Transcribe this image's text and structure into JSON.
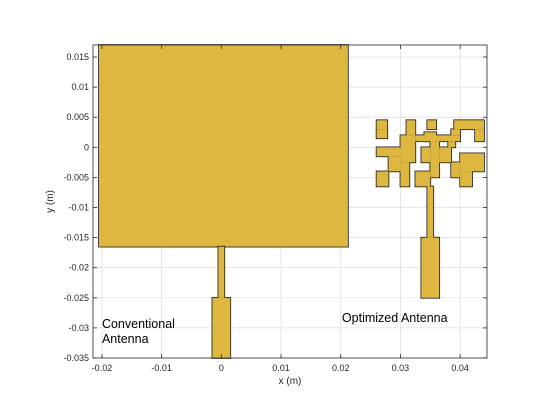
{
  "chart_data": {
    "type": "area",
    "title": "",
    "xlabel": "x (m)",
    "ylabel": "y (m)",
    "xlim": [
      -0.0215,
      0.0445
    ],
    "ylim": [
      -0.035,
      0.017
    ],
    "grid": true,
    "x_ticks": [
      -0.02,
      -0.01,
      0,
      0.01,
      0.02,
      0.03,
      0.04
    ],
    "x_tick_labels": [
      "-0.02",
      "-0.01",
      "0",
      "0.01",
      "0.02",
      "0.03",
      "0.04"
    ],
    "y_ticks": [
      0.015,
      0.01,
      0.005,
      0,
      -0.005,
      -0.01,
      -0.015,
      -0.02,
      -0.025,
      -0.03,
      -0.035
    ],
    "y_tick_labels": [
      "0.015",
      "0.01",
      "0.005",
      "0",
      "-0.005",
      "-0.01",
      "-0.015",
      "-0.02",
      "-0.025",
      "-0.03",
      "-0.035"
    ],
    "fill_color": "#DDB73F",
    "edge_color": "#1a1a1a",
    "grid_color": "#dcdcdc",
    "shapes": [
      {
        "name": "conventional-patch",
        "rects": [
          [
            -0.0205,
            -0.0165,
            0.0212,
            0.017
          ]
        ]
      },
      {
        "name": "conventional-feed",
        "rects": [
          [
            -0.0005,
            -0.025,
            0.0005,
            -0.0165
          ],
          [
            -0.0015,
            -0.035,
            0.0015,
            -0.025
          ]
        ]
      },
      {
        "name": "optimized-antenna",
        "rects": [
          [
            0.026,
            0.003,
            0.0278,
            0.0045
          ],
          [
            0.026,
            0.0015,
            0.0278,
            0.003
          ],
          [
            0.031,
            0.002,
            0.0325,
            0.0045
          ],
          [
            0.03,
            -0.0025,
            0.0325,
            0.002
          ],
          [
            0.0345,
            0.003,
            0.036,
            0.0045
          ],
          [
            0.034,
            0.001,
            0.036,
            0.0025
          ],
          [
            0.0325,
            0.001,
            0.04,
            0.002
          ],
          [
            0.0385,
            0.002,
            0.04,
            0.003
          ],
          [
            0.039,
            0.003,
            0.044,
            0.0045
          ],
          [
            0.0425,
            0.001,
            0.044,
            0.003
          ],
          [
            0.026,
            -0.0015,
            0.03,
            0.0
          ],
          [
            0.026,
            -0.0065,
            0.028,
            -0.004
          ],
          [
            0.028,
            -0.004,
            0.03,
            -0.0015
          ],
          [
            0.03,
            -0.0065,
            0.0315,
            -0.0025
          ],
          [
            0.0335,
            -0.0025,
            0.035,
            0.0
          ],
          [
            0.035,
            -0.005,
            0.0365,
            0.001
          ],
          [
            0.0365,
            -0.0025,
            0.0385,
            0.0
          ],
          [
            0.038,
            0.0,
            0.0392,
            0.001
          ],
          [
            0.0385,
            -0.005,
            0.04,
            -0.0025
          ],
          [
            0.04,
            -0.004,
            0.044,
            -0.001
          ],
          [
            0.04,
            -0.0065,
            0.042,
            -0.004
          ],
          [
            0.0325,
            -0.0065,
            0.035,
            -0.004
          ],
          [
            0.0345,
            -0.015,
            0.0355,
            -0.0065
          ],
          [
            0.0335,
            -0.025,
            0.0365,
            -0.015
          ]
        ]
      }
    ],
    "annotations": [
      {
        "lines": [
          "Conventional",
          "Antenna"
        ],
        "x": -0.02,
        "y": -0.03
      },
      {
        "lines": [
          "Optimized Antenna"
        ],
        "x": 0.0202,
        "y": -0.029
      }
    ]
  }
}
